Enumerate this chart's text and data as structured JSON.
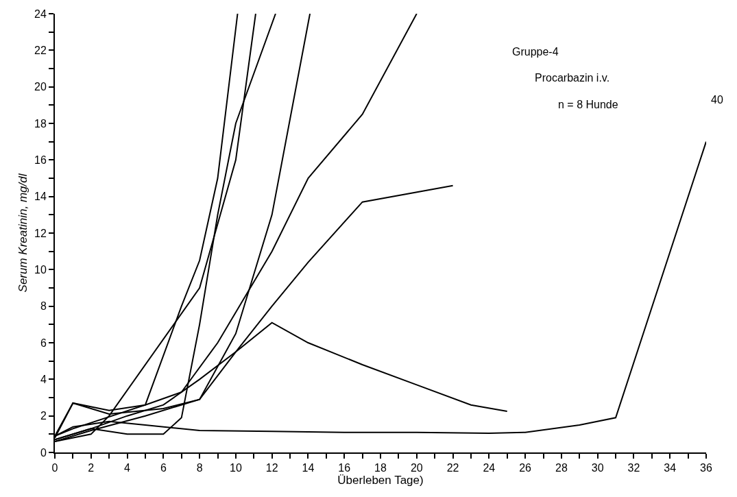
{
  "chart_data": {
    "type": "line",
    "xlabel": "Überleben Tage)",
    "ylabel": "Serum Kreatinin, mg/dl",
    "annotations": [
      "Gruppe-4",
      "Procarbazin i.v.",
      "n = 8 Hunde",
      "40"
    ],
    "series": [
      {
        "color": "#000000",
        "x": [
          0,
          1,
          3,
          5,
          8,
          12,
          16,
          20,
          24,
          26,
          29,
          31,
          36
        ],
        "values": [
          0.9,
          1.4,
          1.7,
          1.5,
          1.2,
          1.15,
          1.1,
          1.1,
          1.05,
          1.1,
          1.5,
          1.9,
          17
        ]
      },
      {
        "color": "#000000",
        "x": [
          0,
          2,
          4,
          6,
          8,
          10,
          12,
          14,
          17,
          20,
          23,
          25
        ],
        "values": [
          0.7,
          1.3,
          2.0,
          2.6,
          4.0,
          5.5,
          7.1,
          6.0,
          4.8,
          3.7,
          2.6,
          2.25
        ]
      },
      {
        "color": "#000000",
        "x": [
          0,
          2,
          5,
          8,
          10,
          12,
          14,
          17,
          22
        ],
        "values": [
          0.6,
          1.2,
          2.0,
          2.9,
          5.5,
          8.0,
          10.4,
          13.7,
          14.6
        ]
      },
      {
        "color": "#000000",
        "x": [
          0,
          1,
          3,
          5,
          7,
          9,
          12,
          14,
          17,
          20
        ],
        "values": [
          0.8,
          2.7,
          2.3,
          2.6,
          3.3,
          6.0,
          11.0,
          15.0,
          18.5,
          24
        ]
      },
      {
        "color": "#000000",
        "x": [
          0,
          1,
          3,
          6,
          8,
          10,
          12,
          14.1
        ],
        "values": [
          0.9,
          2.7,
          2.1,
          2.4,
          2.9,
          6.5,
          13.0,
          24
        ]
      },
      {
        "color": "#000000",
        "x": [
          0,
          2,
          4,
          6,
          7,
          8,
          9,
          10,
          12.2
        ],
        "values": [
          0.7,
          1.3,
          1.0,
          1.0,
          1.9,
          7.0,
          13.0,
          18.0,
          24
        ]
      },
      {
        "color": "#000000",
        "x": [
          0,
          2,
          3,
          8,
          10,
          11.1
        ],
        "values": [
          0.6,
          1.0,
          2.0,
          9.0,
          16.0,
          24
        ]
      },
      {
        "color": "#000000",
        "x": [
          0,
          1,
          5,
          7,
          8,
          9,
          10.1
        ],
        "values": [
          0.9,
          1.3,
          2.6,
          8.0,
          10.5,
          15.0,
          24
        ]
      }
    ],
    "xlim": [
      0,
      36
    ],
    "ylim": [
      0,
      24
    ],
    "xticks": [
      0,
      {
        "value": 1,
        "label": null
      },
      2,
      {
        "value": 3,
        "label": null
      },
      4,
      {
        "value": 5,
        "label": null
      },
      6,
      {
        "value": 7,
        "label": null
      },
      8,
      {
        "value": 9,
        "label": null
      },
      10,
      {
        "value": 11,
        "label": null
      },
      12,
      {
        "value": 13,
        "label": null
      },
      14,
      {
        "value": 15,
        "label": null
      },
      16,
      {
        "value": 17,
        "label": null
      },
      18,
      {
        "value": 19,
        "label": null
      },
      20,
      {
        "value": 21,
        "label": null
      },
      22,
      {
        "value": 23,
        "label": null
      },
      24,
      {
        "value": 25,
        "label": null
      },
      26,
      {
        "value": 27,
        "label": null
      },
      28,
      {
        "value": 29,
        "label": null
      },
      30,
      {
        "value": 31,
        "label": null
      },
      32,
      {
        "value": 33,
        "label": null
      },
      34,
      {
        "value": 35,
        "label": null
      },
      36
    ],
    "yticks": [
      0,
      {
        "value": 1,
        "label": null
      },
      2,
      {
        "value": 3,
        "label": null
      },
      4,
      {
        "value": 5,
        "label": null
      },
      6,
      {
        "value": 7,
        "label": null
      },
      8,
      {
        "value": 9,
        "label": null
      },
      10,
      {
        "value": 11,
        "label": null
      },
      12,
      {
        "value": 13,
        "label": null
      },
      14,
      {
        "value": 15,
        "label": null
      },
      16,
      {
        "value": 17,
        "label": null
      },
      18,
      {
        "value": 19,
        "label": null
      },
      20,
      {
        "value": 21,
        "label": null
      },
      22,
      {
        "value": 23,
        "label": null
      },
      24
    ],
    "marker": "none",
    "line_style": "solid"
  }
}
